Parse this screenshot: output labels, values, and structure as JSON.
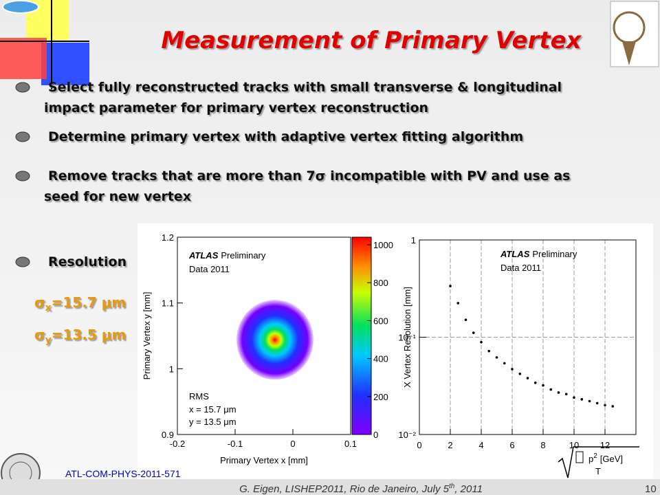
{
  "title": "Measurement of Primary Vertex",
  "bullets": [
    [
      "Select fully reconstructed tracks with small transverse & longitudinal",
      "impact parameter for primary vertex reconstruction"
    ],
    [
      "Determine primary vertex with adaptive vertex fitting algorithm"
    ],
    [
      "Remove tracks that are more than 7σ incompatible with PV and use as",
      "seed for new vertex"
    ],
    [
      "Resolution"
    ]
  ],
  "resolution": [
    {
      "symbol": "σ",
      "sub": "x",
      "text": "=15.7 μm"
    },
    {
      "symbol": "σ",
      "sub": "y",
      "text": "=13.5 μm"
    }
  ],
  "footer": {
    "reference": "ATL-COM-PHYS-2011-571",
    "credit": [
      "G. Eigen, LISHEP2011, Rio de Janeiro, July 5",
      "th",
      ", 2011"
    ],
    "page": "10"
  },
  "chart_data": [
    {
      "type": "heatmap",
      "xlabel": "Primary Vertex x [mm]",
      "ylabel": "Primary Vertex y [mm]",
      "xlim": [
        -0.2,
        0.1
      ],
      "xticks": [
        -0.2,
        -0.1,
        0,
        0.1
      ],
      "ylim": [
        0.9,
        1.2
      ],
      "yticks": [
        0.9,
        1,
        1.1,
        1.2
      ],
      "zlim": [
        0,
        1040
      ],
      "zticks": [
        0,
        200,
        400,
        600,
        800,
        1000
      ],
      "peak": {
        "x": -0.031,
        "y": 1.044
      },
      "experiment": "ATLAS",
      "status": "Preliminary",
      "dataset": "Data 2011",
      "stats_title": "RMS",
      "stats": [
        "x = 15.7 μm",
        "y = 13.5 μm"
      ]
    },
    {
      "type": "scatter",
      "ylabel": "X Vertex Resolution [mm]",
      "xlabel": {
        "base": "p",
        "sup": "2",
        "sub": "T",
        "unit": "[GeV]"
      },
      "xlim": [
        0,
        14
      ],
      "xticks": [
        0,
        2,
        4,
        6,
        8,
        10,
        12
      ],
      "ylim": [
        0.01,
        1
      ],
      "log_y": true,
      "yticks": [
        {
          "value": 0.01,
          "label": "10⁻²"
        },
        {
          "value": 0.1,
          "label": "10⁻¹"
        },
        1
      ],
      "grid": true,
      "color": "#000000",
      "x": [
        2,
        2.5,
        3,
        3.5,
        4,
        4.5,
        5,
        5.5,
        6,
        6.5,
        7,
        7.5,
        8,
        8.5,
        9,
        9.5,
        10,
        10.5,
        11,
        11.5,
        12,
        12.5
      ],
      "values": [
        0.336,
        0.224,
        0.151,
        0.111,
        0.089,
        0.072,
        0.062,
        0.054,
        0.047,
        0.042,
        0.038,
        0.034,
        0.032,
        0.029,
        0.027,
        0.026,
        0.024,
        0.023,
        0.022,
        0.021,
        0.02,
        0.0195
      ],
      "experiment": "ATLAS",
      "status": "Preliminary",
      "dataset": "Data 2011"
    }
  ]
}
